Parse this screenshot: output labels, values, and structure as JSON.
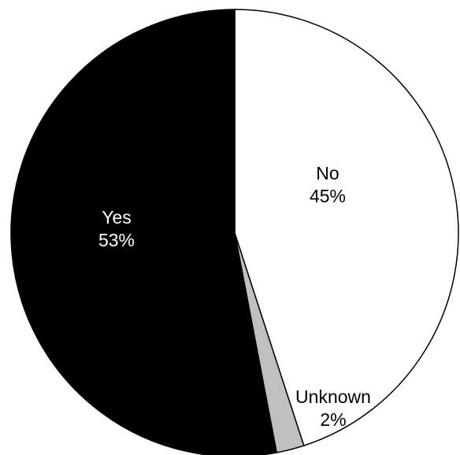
{
  "chart_data": {
    "type": "pie",
    "title": "",
    "slices": [
      {
        "label": "No",
        "value": 45,
        "value_label": "45%",
        "color": "#ffffff",
        "text_color": "#000000"
      },
      {
        "label": "Unknown",
        "value": 2,
        "value_label": "2%",
        "color": "#c0c0c0",
        "text_color": "#000000"
      },
      {
        "label": "Yes",
        "value": 53,
        "value_label": "53%",
        "color": "#000000",
        "text_color": "#ffffff"
      }
    ],
    "start_angle_deg": 0,
    "direction": "clockwise",
    "legend": "none",
    "border_color": "#000000"
  }
}
